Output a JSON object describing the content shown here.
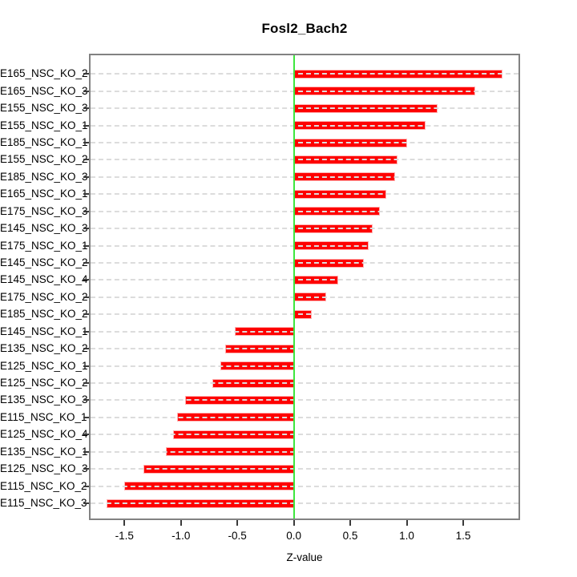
{
  "chart_data": {
    "type": "bar",
    "orientation": "horizontal",
    "title": "Fosl2_Bach2",
    "xlabel": "Z-value",
    "categories": [
      "E165_NSC_KO_2",
      "E165_NSC_KO_3",
      "E155_NSC_KO_3",
      "E155_NSC_KO_1",
      "E185_NSC_KO_1",
      "E155_NSC_KO_2",
      "E185_NSC_KO_3",
      "E165_NSC_KO_1",
      "E175_NSC_KO_3",
      "E145_NSC_KO_3",
      "E175_NSC_KO_1",
      "E145_NSC_KO_2",
      "E145_NSC_KO_4",
      "E175_NSC_KO_2",
      "E185_NSC_KO_2",
      "E145_NSC_KO_1",
      "E135_NSC_KO_2",
      "E125_NSC_KO_1",
      "E125_NSC_KO_2",
      "E135_NSC_KO_3",
      "E115_NSC_KO_1",
      "E125_NSC_KO_4",
      "E135_NSC_KO_1",
      "E125_NSC_KO_3",
      "E115_NSC_KO_2",
      "E115_NSC_KO_3"
    ],
    "values": [
      1.85,
      1.61,
      1.27,
      1.17,
      1.0,
      0.92,
      0.9,
      0.82,
      0.76,
      0.7,
      0.66,
      0.62,
      0.39,
      0.29,
      0.16,
      -0.52,
      -0.61,
      -0.65,
      -0.72,
      -0.96,
      -1.03,
      -1.07,
      -1.13,
      -1.33,
      -1.5,
      -1.66
    ],
    "xlim": [
      -1.8,
      1.99
    ],
    "xticks": [
      -1.5,
      -1.0,
      -0.5,
      0.0,
      0.5,
      1.0,
      1.5
    ],
    "xtick_labels": [
      "-1.5",
      "-1.0",
      "-0.5",
      "0.0",
      "0.5",
      "1.0",
      "1.5"
    ],
    "grid": "horizontal-dashed-per-category",
    "legend_position": "none",
    "colors": {
      "bar": "#fe0000",
      "bar_border": "#ffb0b0",
      "zero_line": "#3ee63e",
      "grid_line": "#dcdcdc",
      "axis_box": "#828282",
      "tick": "#3a3a3a",
      "text": "#000000",
      "background": "#ffffff"
    }
  }
}
